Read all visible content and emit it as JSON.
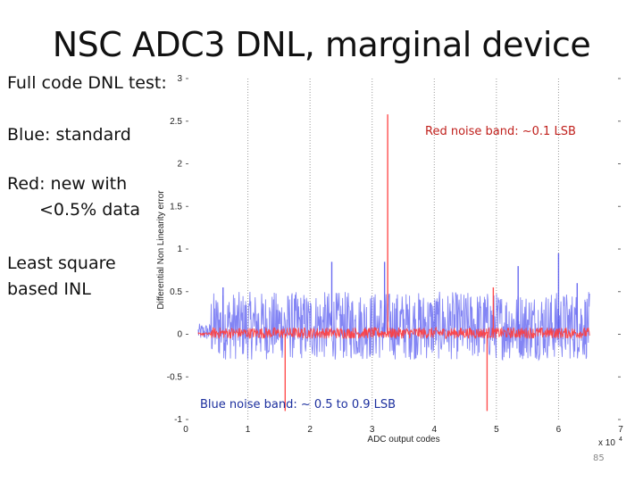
{
  "slide": {
    "title": "NSC ADC3 DNL, marginal device",
    "notes": [
      "Full code DNL test:",
      "Blue: standard",
      "Red: new with",
      "<0.5% data",
      "Least square",
      "based INL"
    ],
    "page_number": "85"
  },
  "chart_data": {
    "type": "line",
    "title": "",
    "xlabel": "ADC output codes",
    "ylabel": "Differential Non Linearity error",
    "x_multiplier_label": "x 10",
    "x_multiplier_exp": "4",
    "xlim": [
      0,
      7
    ],
    "ylim": [
      -1,
      3
    ],
    "xticks": [
      "0",
      "1",
      "2",
      "3",
      "4",
      "5",
      "6",
      "7"
    ],
    "yticks": [
      "-1",
      "-0.5",
      "0",
      "0.5",
      "1",
      "1.5",
      "2",
      "2.5",
      "3"
    ],
    "grid": "vertical dotted",
    "annotations": {
      "red": "Red noise band: ~0.1 LSB",
      "blue": "Blue noise band: ~ 0.5 to 0.9 LSB"
    },
    "colors": {
      "blue": "#5a5cf0",
      "red": "#ff3b3b"
    },
    "series": [
      {
        "color_name": "blue",
        "note": "DNL fluctuating approx -0.3 to +0.5 LSB across codes 0.4e4 to 6.5e4",
        "band": {
          "x_start": 0.4,
          "x_end": 6.5,
          "low": -0.3,
          "high": 0.5
        },
        "spikes": [
          {
            "x": 0.6,
            "y": 0.55
          },
          {
            "x": 2.35,
            "y": 0.85
          },
          {
            "x": 3.2,
            "y": 0.85
          },
          {
            "x": 5.35,
            "y": 0.8
          },
          {
            "x": 6.0,
            "y": 0.95
          },
          {
            "x": 6.3,
            "y": 0.6
          }
        ]
      },
      {
        "color_name": "red",
        "note": "DNL approx +/-0.1 LSB with a few isolated spikes",
        "band": {
          "x_start": 0.4,
          "x_end": 6.5,
          "low": -0.05,
          "high": 0.08
        },
        "spikes": [
          {
            "x": 1.6,
            "y": -0.9
          },
          {
            "x": 3.25,
            "y": 2.58
          },
          {
            "x": 4.85,
            "y": -0.9
          },
          {
            "x": 4.95,
            "y": 0.55
          }
        ]
      }
    ]
  }
}
